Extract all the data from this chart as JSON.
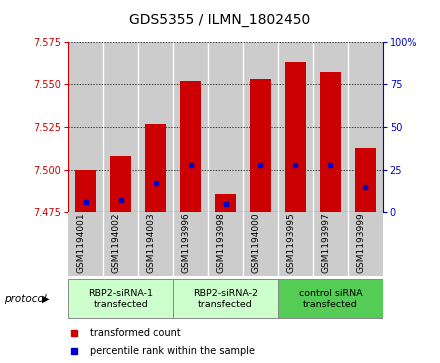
{
  "title": "GDS5355 / ILMN_1802450",
  "samples": [
    "GSM1194001",
    "GSM1194002",
    "GSM1194003",
    "GSM1193996",
    "GSM1193998",
    "GSM1194000",
    "GSM1193995",
    "GSM1193997",
    "GSM1193999"
  ],
  "bar_tops": [
    7.5,
    7.508,
    7.527,
    7.552,
    7.486,
    7.553,
    7.563,
    7.557,
    7.513
  ],
  "bar_bottom": 7.475,
  "percentile_positions": [
    7.481,
    7.482,
    7.492,
    7.503,
    7.48,
    7.503,
    7.503,
    7.503,
    7.49
  ],
  "ylim_left": [
    7.475,
    7.575
  ],
  "ylim_right": [
    0,
    100
  ],
  "yticks_left": [
    7.475,
    7.5,
    7.525,
    7.55,
    7.575
  ],
  "yticks_right": [
    0,
    25,
    50,
    75,
    100
  ],
  "bar_color": "#cc0000",
  "percentile_color": "#0000cc",
  "protocols": [
    {
      "label": "RBP2-siRNA-1\ntransfected",
      "indices": [
        0,
        1,
        2
      ],
      "color": "#ccffcc"
    },
    {
      "label": "RBP2-siRNA-2\ntransfected",
      "indices": [
        3,
        4,
        5
      ],
      "color": "#ccffcc"
    },
    {
      "label": "control siRNA\ntransfected",
      "indices": [
        6,
        7,
        8
      ],
      "color": "#55cc55"
    }
  ],
  "protocol_label": "protocol",
  "legend_items": [
    {
      "color": "#cc0000",
      "label": "transformed count"
    },
    {
      "color": "#0000cc",
      "label": "percentile rank within the sample"
    }
  ],
  "left_axis_color": "#cc0000",
  "right_axis_color": "#0000cc",
  "bar_width": 0.6,
  "group_bg_color": "#cccccc",
  "title_fontsize": 10,
  "tick_fontsize": 7,
  "sample_label_fontsize": 6.5
}
